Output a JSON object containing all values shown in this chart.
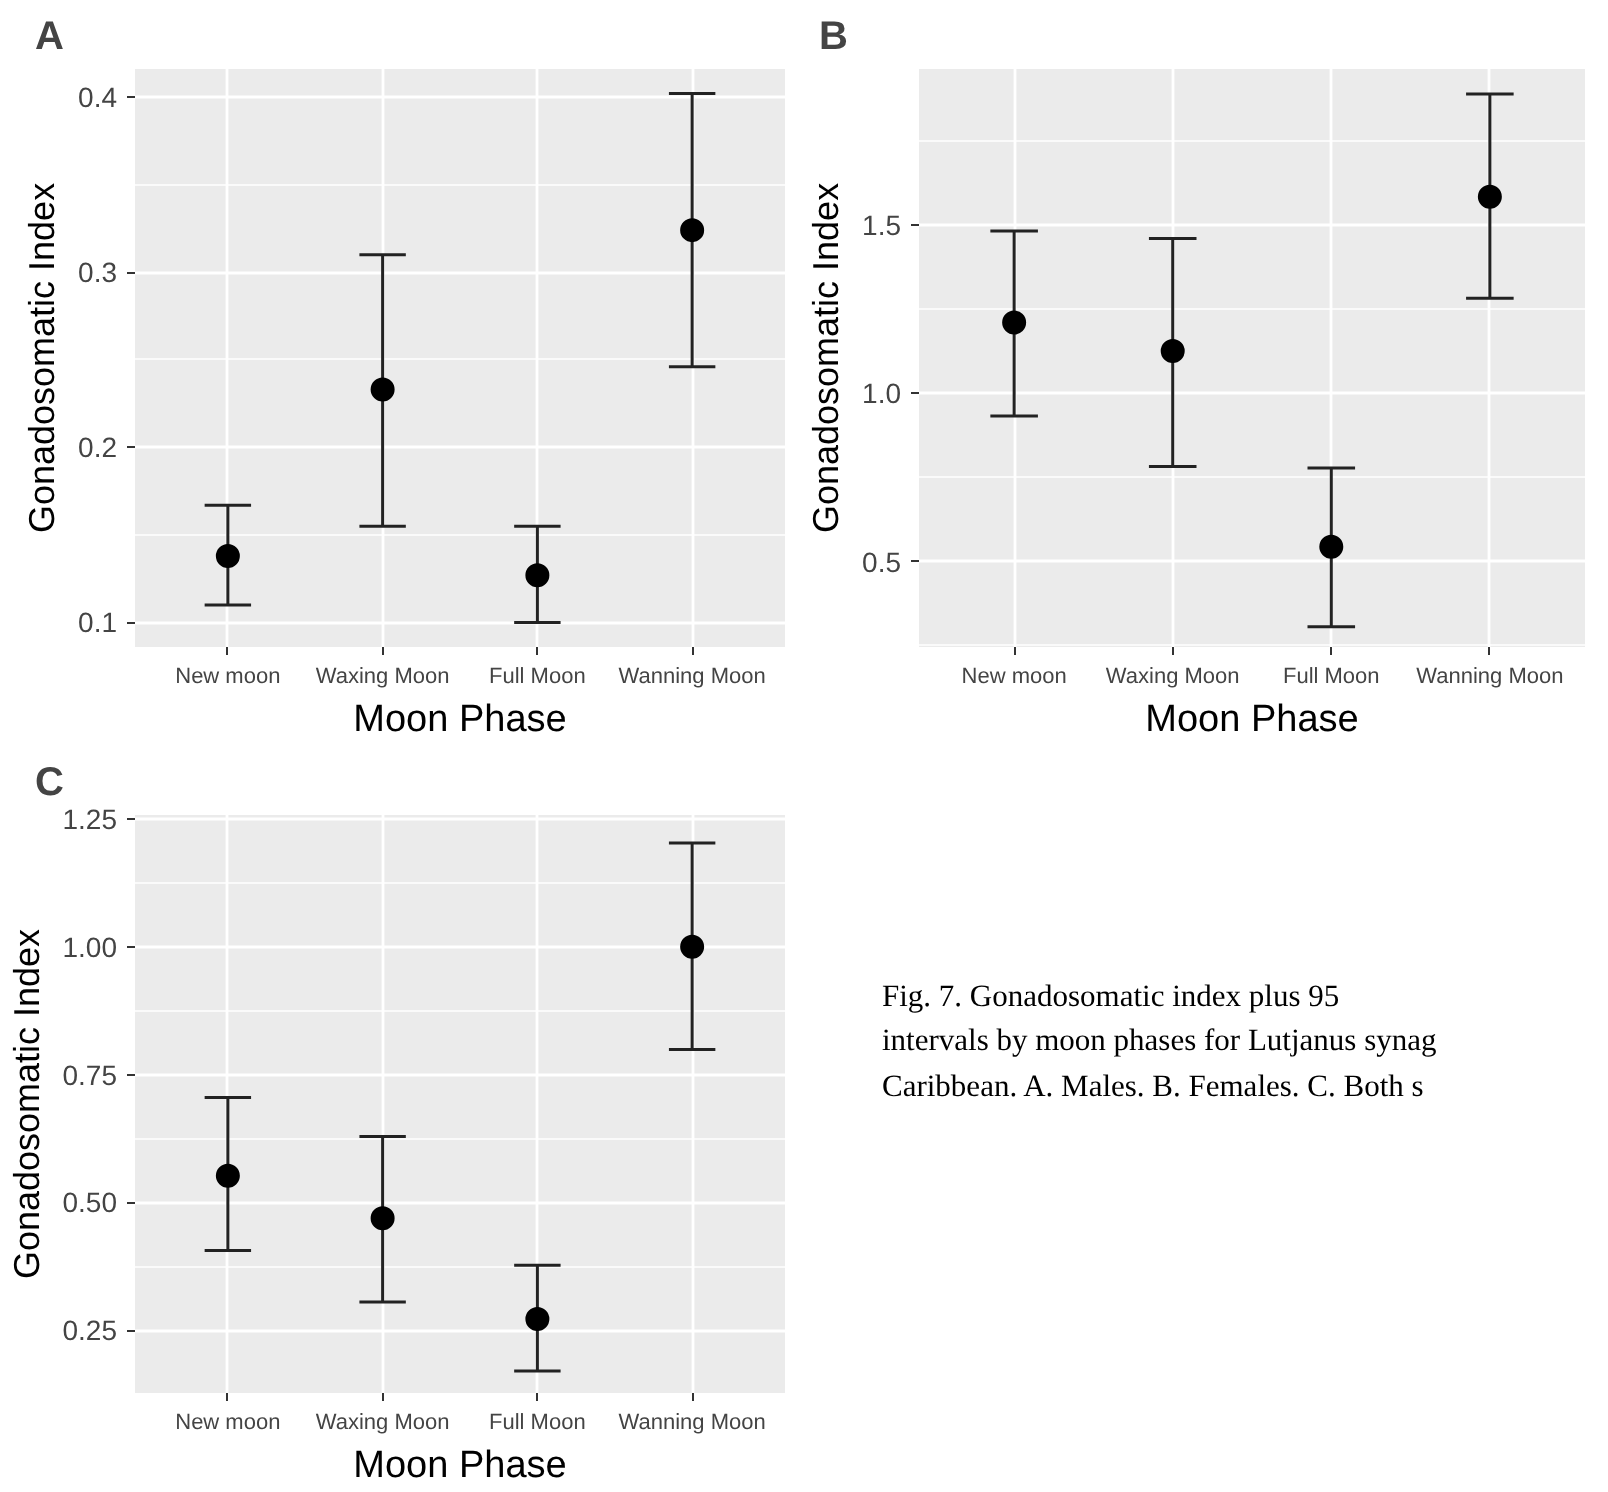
{
  "chart_data": [
    {
      "type": "scatter",
      "title": "A",
      "xlabel": "Moon Phase",
      "ylabel": "Gonadosomatic Index",
      "categories": [
        "New moon",
        "Waxing Moon",
        "Full Moon",
        "Wanning Moon"
      ],
      "values": [
        0.138,
        0.233,
        0.127,
        0.324
      ],
      "errors": [
        [
          0.11,
          0.167
        ],
        [
          0.155,
          0.31
        ],
        [
          0.1,
          0.155
        ],
        [
          0.246,
          0.402
        ]
      ],
      "color": "#000000",
      "marker": "circle",
      "grid": true,
      "ylim": [
        0.086,
        0.416
      ],
      "yticks": [
        0.1,
        0.2,
        0.3,
        0.4
      ]
    },
    {
      "type": "scatter",
      "title": "B",
      "xlabel": "Moon Phase",
      "ylabel": "Gonadosomatic Index",
      "categories": [
        "New moon",
        "Waxing Moon",
        "Full Moon",
        "Wanning Moon"
      ],
      "values": [
        1.211,
        1.126,
        0.544,
        1.585
      ],
      "errors": [
        [
          0.933,
          1.483
        ],
        [
          0.783,
          1.461
        ],
        [
          0.306,
          0.778
        ],
        [
          1.283,
          1.891
        ]
      ],
      "color": "#000000",
      "marker": "circle",
      "grid": true,
      "ylim": [
        0.246,
        1.965
      ],
      "yticks": [
        {
          "value": 0.5,
          "label": "0.5"
        },
        {
          "value": 1,
          "label": "1.0"
        },
        {
          "value": 1.5,
          "label": "1.5"
        }
      ]
    },
    {
      "type": "scatter",
      "title": "C",
      "xlabel": "Moon Phase",
      "ylabel": "Gonadosomatic Index",
      "categories": [
        "New moon",
        "Waxing Moon",
        "Full Moon",
        "Wanning Moon"
      ],
      "values": [
        0.552,
        0.469,
        0.272,
        1.0
      ],
      "errors": [
        [
          0.406,
          0.705
        ],
        [
          0.305,
          0.629
        ],
        [
          0.17,
          0.377
        ],
        [
          0.799,
          1.203
        ]
      ],
      "color": "#000000",
      "marker": "circle",
      "grid": true,
      "ylim": [
        0.127,
        1.258
      ],
      "yticks": [
        0.25,
        {
          "value": 0.5,
          "label": "0.50"
        },
        0.75,
        {
          "value": 1,
          "label": "1.00"
        },
        1.25
      ]
    },
    {
      "type": "other",
      "annotations": [
        "Fig. 7. Gonadosomatic index plus 95",
        "intervals by moon phases for Lutjanus synag",
        "Caribbean. A. Males. B. Females. C. Both s"
      ]
    }
  ]
}
